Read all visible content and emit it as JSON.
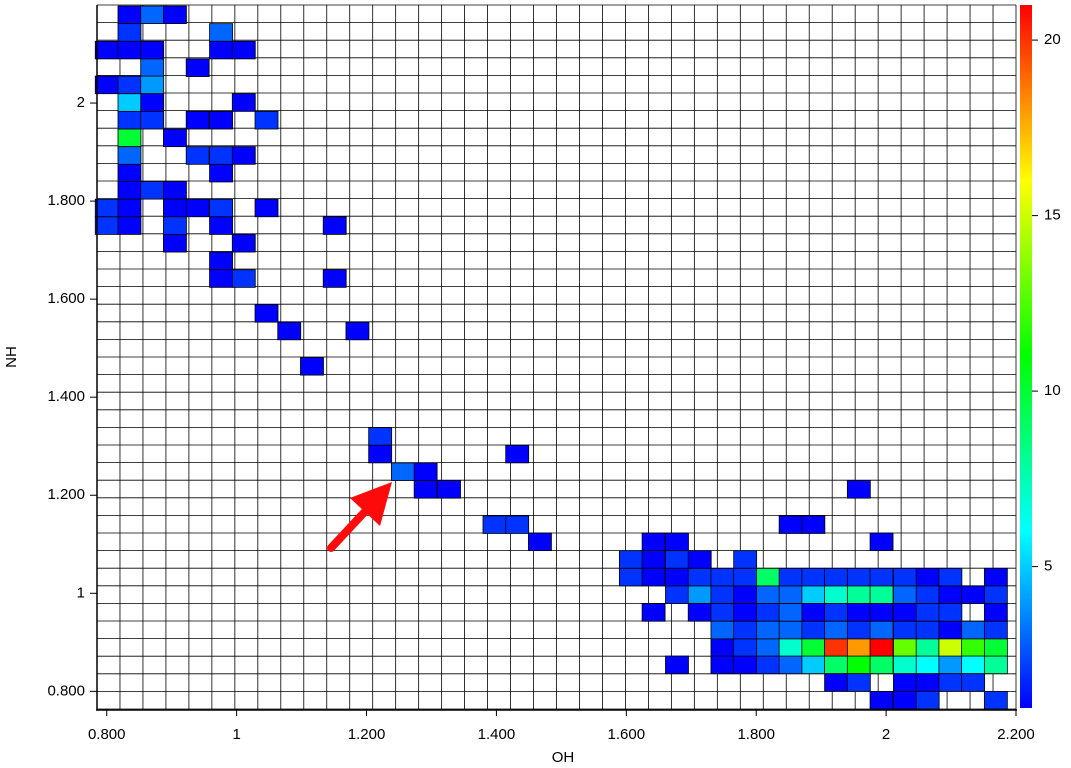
{
  "chart_data": {
    "type": "heatmap",
    "x_label": "OH",
    "y_label": "NH",
    "xlim": [
      0.785,
      2.2
    ],
    "ylim": [
      0.764,
      2.2
    ],
    "xticks": [
      {
        "value": 0.8,
        "label": "0.800"
      },
      1,
      {
        "value": 1.2,
        "label": "1.200"
      },
      {
        "value": 1.4,
        "label": "1.400"
      },
      {
        "value": 1.6,
        "label": "1.600"
      },
      {
        "value": 1.8,
        "label": "1.800"
      },
      2,
      {
        "value": 2.2,
        "label": "2.200"
      }
    ],
    "yticks": [
      {
        "value": 0.8,
        "label": "0.800"
      },
      1,
      {
        "value": 1.2,
        "label": "1.200"
      },
      {
        "value": 1.4,
        "label": "1.400"
      },
      {
        "value": 1.6,
        "label": "1.600"
      },
      {
        "value": 1.8,
        "label": "1.800"
      },
      2
    ],
    "clim": [
      1,
      21
    ],
    "cticks": [
      5,
      10,
      15,
      20
    ],
    "colormap": [
      "#0000ff",
      "#00ffff",
      "#00ff00",
      "#ffff00",
      "#ff0000"
    ],
    "grid": true,
    "cells": [
      [
        0.835,
        2.18,
        1
      ],
      [
        0.87,
        2.18,
        3
      ],
      [
        0.905,
        2.18,
        1
      ],
      [
        0.835,
        2.144,
        2
      ],
      [
        0.976,
        2.144,
        3
      ],
      [
        0.8,
        2.108,
        1
      ],
      [
        0.835,
        2.108,
        1
      ],
      [
        0.87,
        2.108,
        1
      ],
      [
        0.976,
        2.108,
        1
      ],
      [
        1.011,
        2.108,
        1
      ],
      [
        0.87,
        2.072,
        3
      ],
      [
        0.94,
        2.072,
        1
      ],
      [
        0.8,
        2.037,
        1
      ],
      [
        0.835,
        2.037,
        2
      ],
      [
        0.87,
        2.037,
        4
      ],
      [
        0.835,
        2.001,
        5
      ],
      [
        0.87,
        2.001,
        1
      ],
      [
        1.011,
        2.001,
        1
      ],
      [
        0.835,
        1.965,
        2
      ],
      [
        0.87,
        1.965,
        2
      ],
      [
        0.94,
        1.965,
        1
      ],
      [
        0.976,
        1.965,
        1
      ],
      [
        1.046,
        1.965,
        2
      ],
      [
        0.835,
        1.929,
        10
      ],
      [
        0.905,
        1.929,
        1
      ],
      [
        0.835,
        1.893,
        3
      ],
      [
        0.94,
        1.893,
        2
      ],
      [
        0.976,
        1.893,
        2
      ],
      [
        1.011,
        1.893,
        1
      ],
      [
        0.835,
        1.857,
        1
      ],
      [
        0.976,
        1.857,
        1
      ],
      [
        0.835,
        1.822,
        1
      ],
      [
        0.87,
        1.822,
        2
      ],
      [
        0.905,
        1.822,
        1
      ],
      [
        0.8,
        1.786,
        2
      ],
      [
        0.835,
        1.786,
        1
      ],
      [
        0.905,
        1.786,
        1
      ],
      [
        0.94,
        1.786,
        1
      ],
      [
        0.976,
        1.786,
        2
      ],
      [
        1.046,
        1.786,
        1
      ],
      [
        0.8,
        1.75,
        2
      ],
      [
        0.835,
        1.75,
        1
      ],
      [
        0.905,
        1.75,
        2
      ],
      [
        0.976,
        1.75,
        1
      ],
      [
        1.151,
        1.75,
        1
      ],
      [
        0.905,
        1.714,
        1
      ],
      [
        1.011,
        1.714,
        1
      ],
      [
        0.976,
        1.678,
        1
      ],
      [
        0.976,
        1.642,
        1
      ],
      [
        1.011,
        1.642,
        2
      ],
      [
        1.151,
        1.642,
        1
      ],
      [
        1.046,
        1.571,
        1
      ],
      [
        1.081,
        1.535,
        1
      ],
      [
        1.186,
        1.535,
        1
      ],
      [
        1.116,
        1.463,
        1
      ],
      [
        1.221,
        1.32,
        2
      ],
      [
        1.221,
        1.284,
        1
      ],
      [
        1.432,
        1.284,
        1
      ],
      [
        1.256,
        1.248,
        3
      ],
      [
        1.291,
        1.248,
        1
      ],
      [
        1.291,
        1.212,
        1
      ],
      [
        1.327,
        1.212,
        1
      ],
      [
        1.958,
        1.212,
        1
      ],
      [
        1.397,
        1.14,
        2
      ],
      [
        1.432,
        1.14,
        2
      ],
      [
        1.853,
        1.14,
        1
      ],
      [
        1.888,
        1.14,
        1
      ],
      [
        1.467,
        1.105,
        1
      ],
      [
        1.642,
        1.105,
        1
      ],
      [
        1.678,
        1.105,
        1
      ],
      [
        1.993,
        1.105,
        1
      ],
      [
        1.607,
        1.069,
        2
      ],
      [
        1.642,
        1.069,
        1
      ],
      [
        1.678,
        1.069,
        2
      ],
      [
        1.713,
        1.069,
        1
      ],
      [
        1.783,
        1.069,
        2
      ],
      [
        1.607,
        1.033,
        2
      ],
      [
        1.642,
        1.033,
        1
      ],
      [
        1.678,
        1.033,
        1
      ],
      [
        1.713,
        1.033,
        2
      ],
      [
        1.748,
        1.033,
        2
      ],
      [
        1.783,
        1.033,
        2
      ],
      [
        1.818,
        1.033,
        9
      ],
      [
        1.853,
        1.033,
        2
      ],
      [
        1.888,
        1.033,
        2
      ],
      [
        1.923,
        1.033,
        2
      ],
      [
        1.958,
        1.033,
        2
      ],
      [
        1.993,
        1.033,
        2
      ],
      [
        2.029,
        1.033,
        2
      ],
      [
        2.064,
        1.033,
        1
      ],
      [
        2.099,
        1.033,
        2
      ],
      [
        2.169,
        1.033,
        1
      ],
      [
        1.678,
        0.997,
        2
      ],
      [
        1.713,
        0.997,
        4
      ],
      [
        1.748,
        0.997,
        2
      ],
      [
        1.783,
        0.997,
        1
      ],
      [
        1.818,
        0.997,
        3
      ],
      [
        1.853,
        0.997,
        3
      ],
      [
        1.888,
        0.997,
        5
      ],
      [
        1.923,
        0.997,
        7
      ],
      [
        1.958,
        0.997,
        8
      ],
      [
        1.993,
        0.997,
        8
      ],
      [
        2.029,
        0.997,
        3
      ],
      [
        2.064,
        0.997,
        2
      ],
      [
        2.099,
        0.997,
        1
      ],
      [
        2.134,
        0.997,
        1
      ],
      [
        2.169,
        0.997,
        2
      ],
      [
        1.642,
        0.961,
        1
      ],
      [
        1.713,
        0.961,
        1
      ],
      [
        1.748,
        0.961,
        2
      ],
      [
        1.783,
        0.961,
        1
      ],
      [
        1.818,
        0.961,
        2
      ],
      [
        1.853,
        0.961,
        3
      ],
      [
        1.888,
        0.961,
        1
      ],
      [
        1.923,
        0.961,
        2
      ],
      [
        1.958,
        0.961,
        1
      ],
      [
        1.993,
        0.961,
        1
      ],
      [
        2.029,
        0.961,
        1
      ],
      [
        2.064,
        0.961,
        2
      ],
      [
        2.099,
        0.961,
        2
      ],
      [
        2.169,
        0.961,
        1
      ],
      [
        1.748,
        0.925,
        3
      ],
      [
        1.783,
        0.925,
        2
      ],
      [
        1.818,
        0.925,
        3
      ],
      [
        1.853,
        0.925,
        3
      ],
      [
        1.888,
        0.925,
        2
      ],
      [
        1.923,
        0.925,
        3
      ],
      [
        1.958,
        0.925,
        2
      ],
      [
        1.993,
        0.925,
        3
      ],
      [
        2.029,
        0.925,
        2
      ],
      [
        2.064,
        0.925,
        2
      ],
      [
        2.099,
        0.925,
        1
      ],
      [
        2.134,
        0.925,
        3
      ],
      [
        2.169,
        0.925,
        2
      ],
      [
        1.748,
        0.889,
        1
      ],
      [
        1.783,
        0.889,
        2
      ],
      [
        1.818,
        0.889,
        3
      ],
      [
        1.853,
        0.889,
        7
      ],
      [
        1.888,
        0.889,
        10
      ],
      [
        1.923,
        0.889,
        20
      ],
      [
        1.958,
        0.889,
        18
      ],
      [
        1.993,
        0.889,
        21
      ],
      [
        2.029,
        0.889,
        13
      ],
      [
        2.064,
        0.889,
        8
      ],
      [
        2.099,
        0.889,
        15
      ],
      [
        2.134,
        0.889,
        12
      ],
      [
        2.169,
        0.889,
        10
      ],
      [
        1.678,
        0.854,
        1
      ],
      [
        1.748,
        0.854,
        1
      ],
      [
        1.783,
        0.854,
        1
      ],
      [
        1.818,
        0.854,
        2
      ],
      [
        1.853,
        0.854,
        3
      ],
      [
        1.888,
        0.854,
        5
      ],
      [
        1.923,
        0.854,
        9
      ],
      [
        1.958,
        0.854,
        11
      ],
      [
        1.993,
        0.854,
        9
      ],
      [
        2.029,
        0.854,
        7
      ],
      [
        2.064,
        0.854,
        6
      ],
      [
        2.099,
        0.854,
        4
      ],
      [
        2.134,
        0.854,
        6
      ],
      [
        2.169,
        0.854,
        8
      ],
      [
        1.923,
        0.818,
        1
      ],
      [
        1.958,
        0.818,
        2
      ],
      [
        2.029,
        0.818,
        1
      ],
      [
        2.064,
        0.818,
        1
      ],
      [
        2.099,
        0.818,
        2
      ],
      [
        2.134,
        0.818,
        2
      ],
      [
        1.993,
        0.782,
        1
      ],
      [
        2.029,
        0.782,
        1
      ],
      [
        2.064,
        0.782,
        2
      ],
      [
        2.169,
        0.782,
        2
      ]
    ]
  }
}
